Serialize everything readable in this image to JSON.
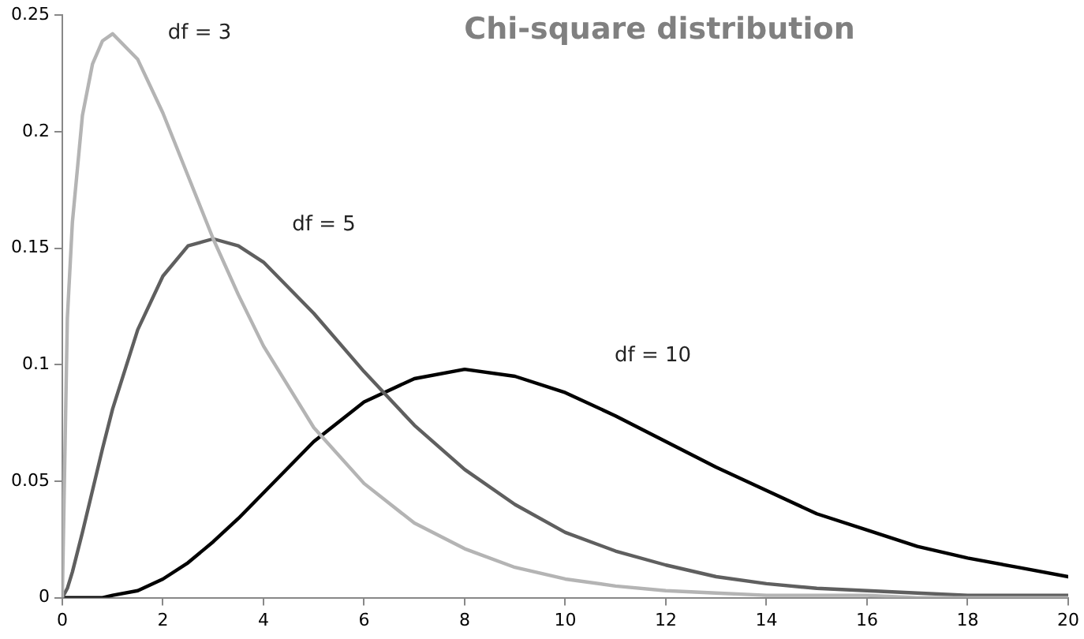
{
  "chart_data": {
    "type": "line",
    "title": "Chi-square distribution",
    "x": [
      0,
      0.1,
      0.2,
      0.4,
      0.6,
      0.8,
      1,
      1.5,
      2,
      2.5,
      3,
      3.5,
      4,
      5,
      6,
      7,
      8,
      9,
      10,
      11,
      12,
      13,
      14,
      15,
      16,
      17,
      18,
      19,
      20
    ],
    "series": [
      {
        "name": "df = 3",
        "color": "#b4b4b4",
        "values": [
          0,
          0.12,
          0.161,
          0.207,
          0.229,
          0.239,
          0.242,
          0.231,
          0.208,
          0.181,
          0.154,
          0.13,
          0.108,
          0.073,
          0.049,
          0.032,
          0.021,
          0.013,
          0.008,
          0.005,
          0.003,
          0.002,
          0.001,
          0.001,
          0.001,
          0,
          0,
          0,
          0
        ]
      },
      {
        "name": "df = 5",
        "color": "#5f5f5f",
        "values": [
          0,
          0.004,
          0.011,
          0.028,
          0.046,
          0.064,
          0.081,
          0.115,
          0.138,
          0.151,
          0.154,
          0.151,
          0.144,
          0.122,
          0.097,
          0.074,
          0.055,
          0.04,
          0.028,
          0.02,
          0.014,
          0.009,
          0.006,
          0.004,
          0.003,
          0.002,
          0.001,
          0.001,
          0.001
        ]
      },
      {
        "name": "df = 10",
        "color": "#000000",
        "values": [
          0,
          0,
          0,
          0,
          0,
          0,
          0.001,
          0.003,
          0.008,
          0.015,
          0.024,
          0.034,
          0.045,
          0.067,
          0.084,
          0.094,
          0.098,
          0.095,
          0.088,
          0.078,
          0.067,
          0.056,
          0.046,
          0.036,
          0.029,
          0.022,
          0.017,
          0.013,
          0.009
        ]
      }
    ],
    "xlim": [
      0,
      20
    ],
    "xticks": [
      0,
      2,
      4,
      6,
      8,
      10,
      12,
      14,
      16,
      18,
      20
    ],
    "ylim": [
      0,
      0.25
    ],
    "yticks": [
      0,
      0.05,
      0.1,
      0.15,
      0.2,
      0.25
    ],
    "grid": false,
    "legend": false,
    "marker": "none",
    "line_style": "solid"
  }
}
